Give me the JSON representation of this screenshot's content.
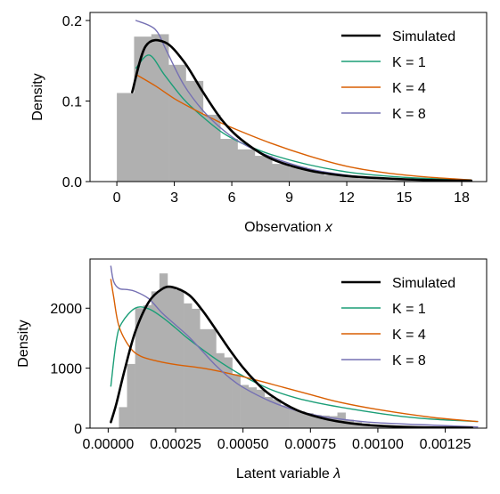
{
  "colors": {
    "histogram": "#b0b0b0",
    "simulated": "#000000",
    "k1": "#1b9e77",
    "k4": "#d95f02",
    "k8": "#7570b3"
  },
  "chart_data": [
    {
      "type": "bar",
      "xlabel_main": "Observation ",
      "xlabel_var": "x",
      "ylabel": "Density",
      "xlim": [
        -1.4,
        19.3
      ],
      "ylim": [
        0,
        0.21
      ],
      "xticks": [
        0,
        3,
        6,
        9,
        12,
        15,
        18
      ],
      "xtick_labels": [
        "0",
        "3",
        "6",
        "9",
        "12",
        "15",
        "18"
      ],
      "yticks": [
        0,
        0.1,
        0.2
      ],
      "ytick_labels": [
        "0.0",
        "0.1",
        "0.2"
      ],
      "histogram": {
        "edges": [
          0,
          0.9,
          1.8,
          2.7,
          3.6,
          4.5,
          5.4,
          6.3,
          7.2,
          8.1,
          9.0,
          9.9,
          10.8,
          11.7,
          12.6,
          13.5,
          14.4,
          15.3,
          16.2,
          17.1,
          18.0
        ],
        "values": [
          0.11,
          0.18,
          0.183,
          0.145,
          0.125,
          0.083,
          0.053,
          0.04,
          0.032,
          0.022,
          0.018,
          0.013,
          0.008,
          0.006,
          0.004,
          0.003,
          0.002,
          0.001,
          0.001,
          0.0005
        ]
      },
      "series": [
        {
          "name": "Simulated",
          "key": "simulated",
          "width": 2.6,
          "x": [
            0.8,
            1.5,
            2.5,
            3.5,
            4.5,
            5.5,
            6.5,
            8,
            10,
            12,
            14,
            16,
            18.5
          ],
          "y": [
            0.111,
            0.168,
            0.173,
            0.149,
            0.111,
            0.076,
            0.052,
            0.029,
            0.014,
            0.007,
            0.004,
            0.002,
            0.001
          ]
        },
        {
          "name": "K = 1",
          "key": "k1",
          "width": 1.4,
          "x": [
            1.0,
            1.7,
            2.5,
            3.5,
            4.5,
            5.5,
            6.5,
            8,
            10,
            12,
            14,
            16,
            18.5
          ],
          "y": [
            0.141,
            0.157,
            0.132,
            0.102,
            0.08,
            0.061,
            0.048,
            0.034,
            0.021,
            0.012,
            0.007,
            0.004,
            0.002
          ]
        },
        {
          "name": "K = 4",
          "key": "k4",
          "width": 1.4,
          "x": [
            1.0,
            2,
            3,
            4,
            5,
            6,
            8,
            10,
            12,
            14,
            16,
            18.5
          ],
          "y": [
            0.133,
            0.119,
            0.103,
            0.09,
            0.078,
            0.067,
            0.048,
            0.032,
            0.019,
            0.011,
            0.006,
            0.002
          ]
        },
        {
          "name": "K = 8",
          "key": "k8",
          "width": 1.4,
          "x": [
            1.0,
            2.0,
            2.6,
            3.5,
            4.5,
            5.5,
            6.5,
            8,
            10,
            12,
            14,
            16,
            18.5
          ],
          "y": [
            0.2,
            0.189,
            0.162,
            0.12,
            0.088,
            0.065,
            0.048,
            0.031,
            0.016,
            0.008,
            0.004,
            0.002,
            0.001
          ]
        }
      ],
      "legend": {
        "placement": "top-right",
        "entries": [
          "Simulated",
          "K = 1",
          "K = 4",
          "K = 8"
        ]
      }
    },
    {
      "type": "bar",
      "xlabel_main": "Latent variable ",
      "xlabel_var": "λ",
      "ylabel": "Density",
      "xlim": [
        -6.73e-05,
        0.0014034
      ],
      "ylim": [
        0,
        2820
      ],
      "xticks": [
        0,
        0.00025,
        0.0005,
        0.00075,
        0.001,
        0.00125
      ],
      "xtick_labels": [
        "0.00000",
        "0.00025",
        "0.00050",
        "0.00075",
        "0.00100",
        "0.00125"
      ],
      "yticks": [
        0,
        1000,
        2000
      ],
      "ytick_labels": [
        "0",
        "1000",
        "2000"
      ],
      "histogram": {
        "edges": [
          4e-05,
          7e-05,
          0.0001,
          0.00013,
          0.00016,
          0.00019,
          0.00022,
          0.00025,
          0.00028,
          0.00031,
          0.00034,
          0.00037,
          0.0004,
          0.00043,
          0.00046,
          0.00049,
          0.00052,
          0.00055,
          0.00058,
          0.00061,
          0.00064,
          0.00067,
          0.0007,
          0.00073,
          0.00076,
          0.00079,
          0.00082,
          0.00085,
          0.00088,
          0.00091,
          0.00094,
          0.00097,
          0.001,
          0.00103,
          0.00106
        ],
        "values": [
          350,
          1070,
          2000,
          2050,
          2280,
          2580,
          2350,
          2300,
          2080,
          1990,
          1650,
          1650,
          1250,
          1180,
          900,
          720,
          680,
          640,
          520,
          480,
          380,
          320,
          280,
          250,
          220,
          210,
          200,
          260,
          140,
          100,
          80,
          60,
          50,
          40
        ]
      },
      "series": [
        {
          "name": "Simulated",
          "key": "simulated",
          "width": 2.6,
          "x": [
            1e-05,
            3e-05,
            6e-05,
            0.0001,
            0.00015,
            0.0002,
            0.00024,
            0.0003,
            0.00035,
            0.0004,
            0.00045,
            0.0005,
            0.00055,
            0.0006,
            0.0007,
            0.0008,
            0.0009,
            0.001,
            0.00115,
            0.00135
          ],
          "y": [
            100,
            400,
            950,
            1600,
            2100,
            2320,
            2350,
            2220,
            1960,
            1640,
            1310,
            1010,
            760,
            560,
            300,
            160,
            80,
            40,
            15,
            5
          ]
        },
        {
          "name": "K = 1",
          "key": "k1",
          "width": 1.4,
          "x": [
            1e-05,
            3e-05,
            5e-05,
            0.0001,
            0.00015,
            0.0002,
            0.00025,
            0.0003,
            0.0004,
            0.0005,
            0.0006,
            0.0007,
            0.0008,
            0.0009,
            0.001,
            0.0011,
            0.0012,
            0.00137
          ],
          "y": [
            700,
            1450,
            1750,
            2000,
            1990,
            1850,
            1670,
            1480,
            1150,
            870,
            650,
            500,
            400,
            320,
            250,
            190,
            150,
            110
          ]
        },
        {
          "name": "K = 4",
          "key": "k4",
          "width": 1.4,
          "x": [
            1e-05,
            2e-05,
            4e-05,
            8e-05,
            0.00012,
            0.00018,
            0.00025,
            0.00035,
            0.00045,
            0.00055,
            0.00065,
            0.00075,
            0.00085,
            0.001,
            0.0012,
            0.00137
          ],
          "y": [
            2480,
            2200,
            1700,
            1350,
            1200,
            1120,
            1060,
            1000,
            910,
            800,
            680,
            560,
            440,
            310,
            180,
            110
          ]
        },
        {
          "name": "K = 8",
          "key": "k8",
          "width": 1.4,
          "x": [
            1e-05,
            2e-05,
            4e-05,
            7e-05,
            0.0001,
            0.00015,
            0.0002,
            0.00025,
            0.0003,
            0.00035,
            0.0004,
            0.00045,
            0.0005,
            0.0006,
            0.0007,
            0.0008,
            0.0009,
            0.001,
            0.0012,
            0.00137
          ],
          "y": [
            2700,
            2450,
            2330,
            2310,
            2280,
            2160,
            1920,
            1720,
            1520,
            1280,
            1040,
            840,
            680,
            450,
            290,
            190,
            130,
            90,
            50,
            20
          ]
        }
      ],
      "legend": {
        "placement": "top-right",
        "entries": [
          "Simulated",
          "K = 1",
          "K = 4",
          "K = 8"
        ]
      }
    }
  ]
}
